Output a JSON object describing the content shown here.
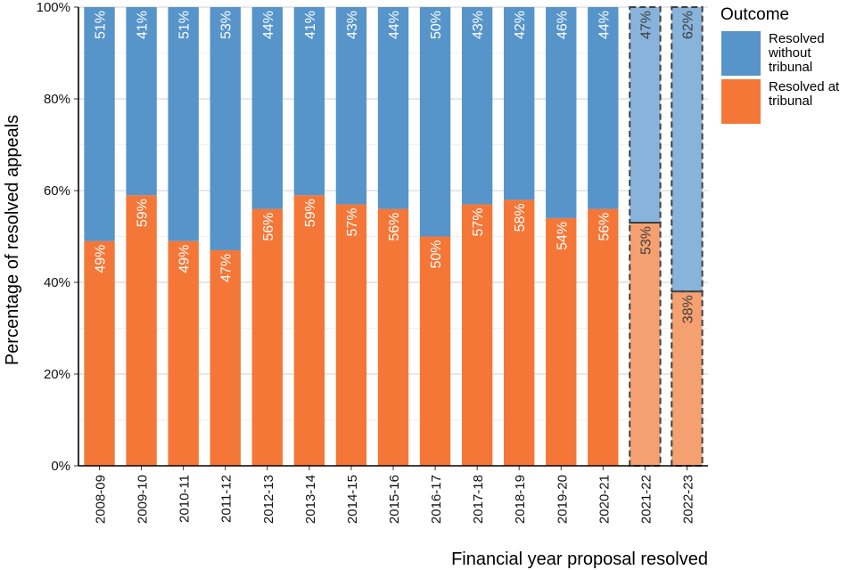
{
  "chart_data": {
    "type": "bar",
    "stacked": true,
    "categories": [
      "2008-09",
      "2009-10",
      "2010-11",
      "2011-12",
      "2012-13",
      "2013-14",
      "2014-15",
      "2015-16",
      "2016-17",
      "2017-18",
      "2018-19",
      "2019-20",
      "2020-21",
      "2021-22",
      "2022-23"
    ],
    "series": [
      {
        "name": "Resolved at tribunal",
        "values": [
          49,
          59,
          49,
          47,
          56,
          59,
          57,
          56,
          50,
          57,
          58,
          54,
          56,
          53,
          38
        ],
        "labels": [
          "49%",
          "59%",
          "49%",
          "47%",
          "56%",
          "59%",
          "57%",
          "56%",
          "50%",
          "57%",
          "58%",
          "54%",
          "56%",
          "53%",
          "38%"
        ],
        "color": "#f47738"
      },
      {
        "name": "Resolved without tribunal",
        "values": [
          51,
          41,
          51,
          53,
          44,
          41,
          43,
          44,
          50,
          43,
          42,
          46,
          44,
          47,
          62
        ],
        "labels": [
          "51%",
          "41%",
          "51%",
          "53%",
          "44%",
          "41%",
          "43%",
          "44%",
          "50%",
          "43%",
          "42%",
          "46%",
          "44%",
          "47%",
          "62%"
        ],
        "color": "#5694ca"
      }
    ],
    "provisional": [
      "2021-22",
      "2022-23"
    ],
    "provisional_colors": {
      "Resolved at tribunal": "#f5a070",
      "Resolved without tribunal": "#88b3da"
    },
    "xlabel": "Financial year proposal resolved",
    "ylabel": "Percentage of resolved appeals",
    "ylim": [
      0,
      100
    ],
    "yticks": [
      0,
      20,
      40,
      60,
      80,
      100
    ],
    "ytick_labels": [
      "0%",
      "20%",
      "40%",
      "60%",
      "80%",
      "100%"
    ],
    "grid": true,
    "legend": {
      "title": "Outcome",
      "position": "right",
      "items": [
        {
          "label": "Resolved without tribunal",
          "color": "#5694ca"
        },
        {
          "label": "Resolved at tribunal",
          "color": "#f47738"
        }
      ]
    }
  }
}
